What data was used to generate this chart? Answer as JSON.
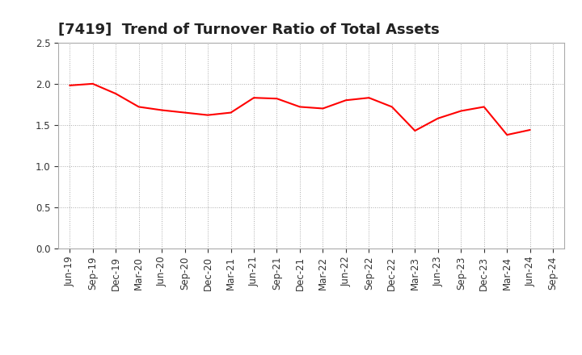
{
  "title": "[7419]  Trend of Turnover Ratio of Total Assets",
  "x_labels": [
    "Jun-19",
    "Sep-19",
    "Dec-19",
    "Mar-20",
    "Jun-20",
    "Sep-20",
    "Dec-20",
    "Mar-21",
    "Jun-21",
    "Sep-21",
    "Dec-21",
    "Mar-22",
    "Jun-22",
    "Sep-22",
    "Dec-22",
    "Mar-23",
    "Jun-23",
    "Sep-23",
    "Dec-23",
    "Mar-24",
    "Jun-24",
    "Sep-24"
  ],
  "values": [
    1.98,
    2.0,
    1.88,
    1.72,
    1.68,
    1.65,
    1.62,
    1.65,
    1.83,
    1.82,
    1.72,
    1.7,
    1.8,
    1.83,
    1.72,
    1.43,
    1.58,
    1.67,
    1.72,
    1.38,
    1.44,
    null
  ],
  "line_color": "#FF0000",
  "background_color": "#FFFFFF",
  "plot_bg_color": "#FFFFFF",
  "ylim": [
    0,
    2.5
  ],
  "yticks": [
    0.0,
    0.5,
    1.0,
    1.5,
    2.0,
    2.5
  ],
  "grid_color": "#AAAAAA",
  "title_fontsize": 13,
  "tick_fontsize": 8.5
}
